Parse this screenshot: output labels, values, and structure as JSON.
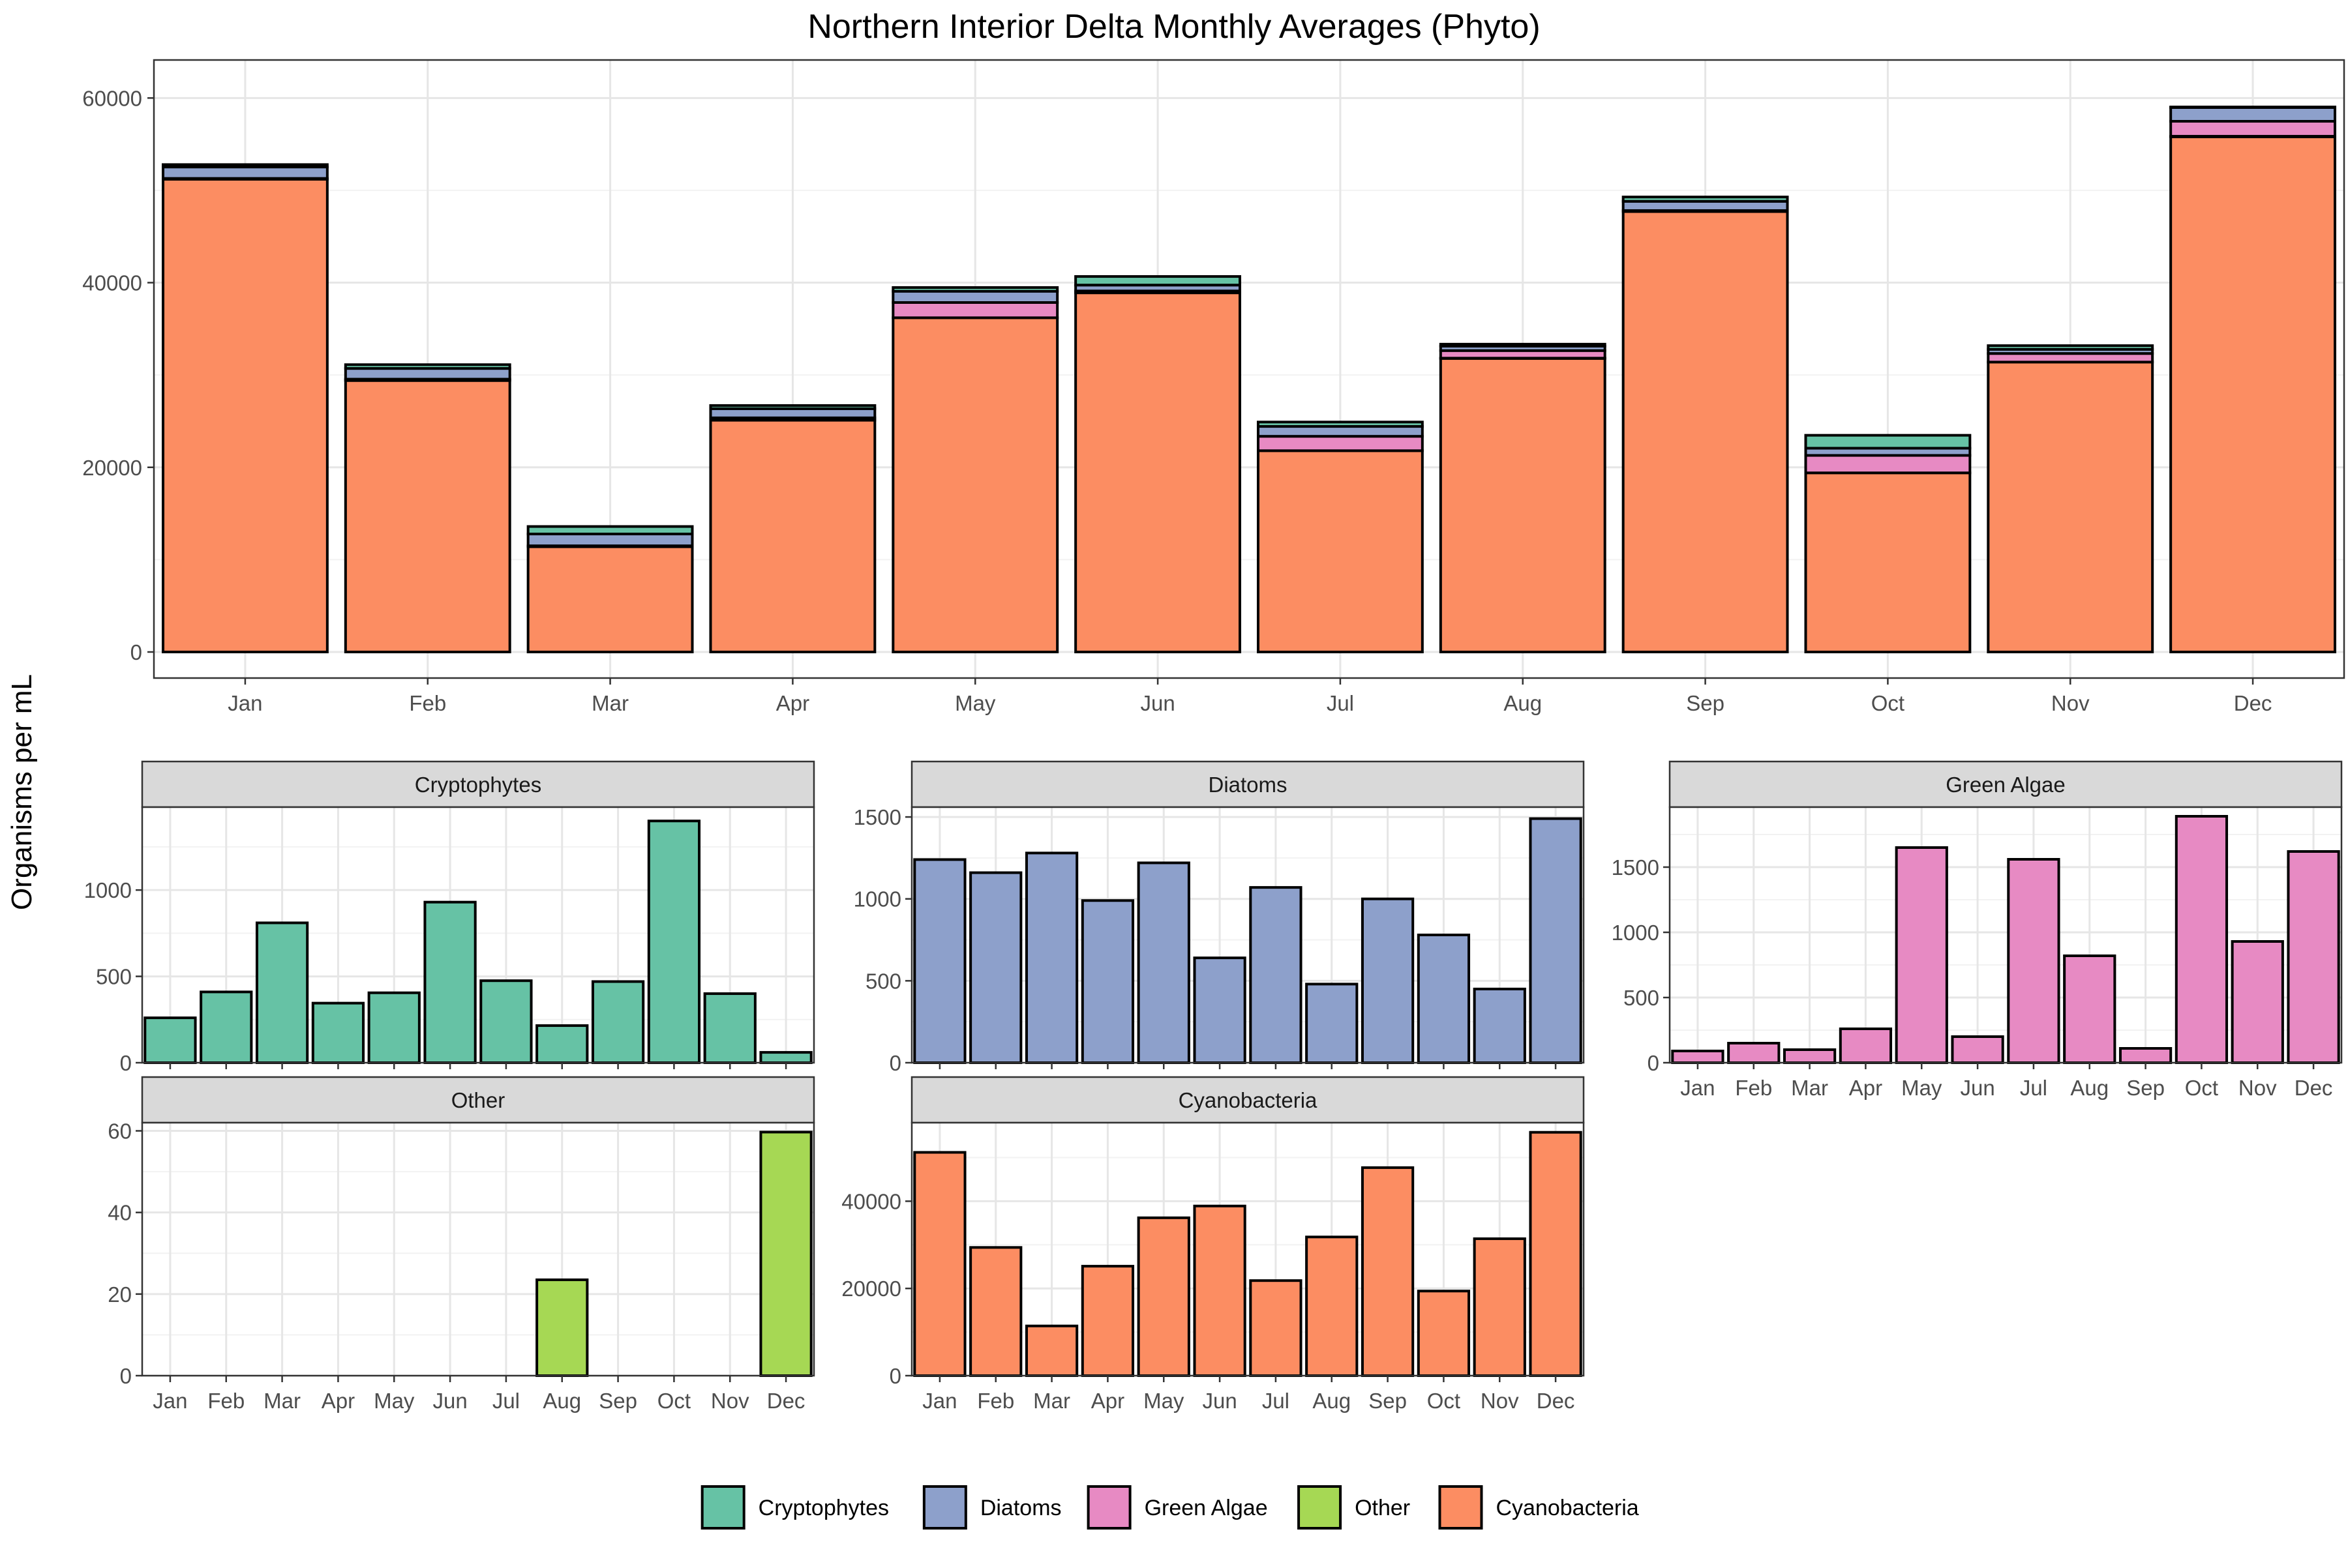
{
  "title": "Northern Interior Delta Monthly Averages (Phyto)",
  "ylabel": "Organisms per mL",
  "colors": {
    "Cryptophytes": "#66C2A5",
    "Diatoms": "#8DA0CB",
    "Green Algae": "#E78AC3",
    "Other": "#A6D854",
    "Cyanobacteria": "#FC8D62"
  },
  "legend": [
    "Cryptophytes",
    "Diatoms",
    "Green Algae",
    "Other",
    "Cyanobacteria"
  ],
  "chart_data": [
    {
      "type": "bar",
      "stacked": true,
      "title": "Northern Interior Delta Monthly Averages (Phyto)",
      "ylabel": "Organisms per mL",
      "categories": [
        "Jan",
        "Feb",
        "Mar",
        "Apr",
        "May",
        "Jun",
        "Jul",
        "Aug",
        "Sep",
        "Oct",
        "Nov",
        "Dec"
      ],
      "ylim": [
        0,
        62000
      ],
      "yticks": [
        0,
        20000,
        40000,
        60000
      ],
      "stack_order": [
        "Cyanobacteria",
        "Other",
        "Green Algae",
        "Diatoms",
        "Cryptophytes"
      ],
      "grid": true
    },
    {
      "type": "bar",
      "facet": "Cryptophytes",
      "categories": [
        "Jan",
        "Feb",
        "Mar",
        "Apr",
        "May",
        "Jun",
        "Jul",
        "Aug",
        "Sep",
        "Oct",
        "Nov",
        "Dec"
      ],
      "values": [
        260,
        410,
        810,
        345,
        405,
        930,
        475,
        215,
        470,
        1400,
        400,
        60
      ],
      "ylim": [
        0,
        1480
      ],
      "yticks": [
        0,
        500,
        1000
      ]
    },
    {
      "type": "bar",
      "facet": "Diatoms",
      "categories": [
        "Jan",
        "Feb",
        "Mar",
        "Apr",
        "May",
        "Jun",
        "Jul",
        "Aug",
        "Sep",
        "Oct",
        "Nov",
        "Dec"
      ],
      "values": [
        1240,
        1160,
        1280,
        990,
        1220,
        640,
        1070,
        480,
        1000,
        780,
        450,
        1490
      ],
      "ylim": [
        0,
        1560
      ],
      "yticks": [
        0,
        500,
        1000,
        1500
      ]
    },
    {
      "type": "bar",
      "facet": "Green Algae",
      "categories": [
        "Jan",
        "Feb",
        "Mar",
        "Apr",
        "May",
        "Jun",
        "Jul",
        "Aug",
        "Sep",
        "Oct",
        "Nov",
        "Dec"
      ],
      "values": [
        90,
        150,
        100,
        260,
        1650,
        200,
        1560,
        820,
        110,
        1890,
        930,
        1620
      ],
      "ylim": [
        0,
        1960
      ],
      "yticks": [
        0,
        500,
        1000,
        1500
      ]
    },
    {
      "type": "bar",
      "facet": "Other",
      "categories": [
        "Jan",
        "Feb",
        "Mar",
        "Apr",
        "May",
        "Jun",
        "Jul",
        "Aug",
        "Sep",
        "Oct",
        "Nov",
        "Dec"
      ],
      "values": [
        0,
        0,
        0,
        0,
        0,
        0,
        0,
        23.5,
        0,
        0,
        0,
        59.7
      ],
      "ylim": [
        0,
        62
      ],
      "yticks": [
        0,
        20,
        40,
        60
      ]
    },
    {
      "type": "bar",
      "facet": "Cyanobacteria",
      "categories": [
        "Jan",
        "Feb",
        "Mar",
        "Apr",
        "May",
        "Jun",
        "Jul",
        "Aug",
        "Sep",
        "Oct",
        "Nov",
        "Dec"
      ],
      "values": [
        51200,
        29400,
        11400,
        25100,
        36200,
        38900,
        21800,
        31800,
        47700,
        19400,
        31400,
        55800
      ],
      "ylim": [
        0,
        58000
      ],
      "yticks": [
        0,
        20000,
        40000
      ]
    }
  ]
}
